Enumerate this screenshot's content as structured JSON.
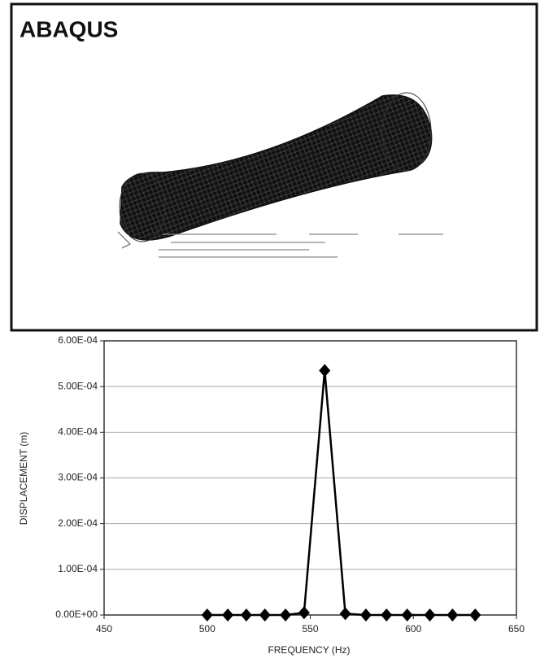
{
  "image_panel": {
    "title": "ABAQUS"
  },
  "chart_data": {
    "type": "line",
    "x_label": "FREQUENCY (Hz)",
    "y_label": "DISPLACEMENT (m)",
    "series": [
      {
        "color": "#000000",
        "x": [
          500,
          510,
          519,
          528,
          538,
          547,
          557,
          567,
          577,
          587,
          597,
          608,
          619,
          630
        ],
        "values": [
          0,
          0,
          0,
          0,
          0,
          5e-06,
          0.000535,
          3e-06,
          0,
          0,
          0,
          0,
          0,
          0
        ]
      }
    ],
    "xlim": [
      450,
      650
    ],
    "xticks": [
      450,
      500,
      550,
      600,
      650
    ],
    "ylim": [
      0,
      0.0006
    ],
    "yticks": [
      {
        "value": 0,
        "label": "0.00E+00"
      },
      {
        "value": 0.0001,
        "label": "1.00E-04"
      },
      {
        "value": 0.0002,
        "label": "2.00E-04"
      },
      {
        "value": 0.0003,
        "label": "3.00E-04"
      },
      {
        "value": 0.0004,
        "label": "4.00E-04"
      },
      {
        "value": 0.0005,
        "label": "5.00E-04"
      },
      {
        "value": 0.0006,
        "label": "6.00E-04"
      }
    ],
    "grid": true
  }
}
